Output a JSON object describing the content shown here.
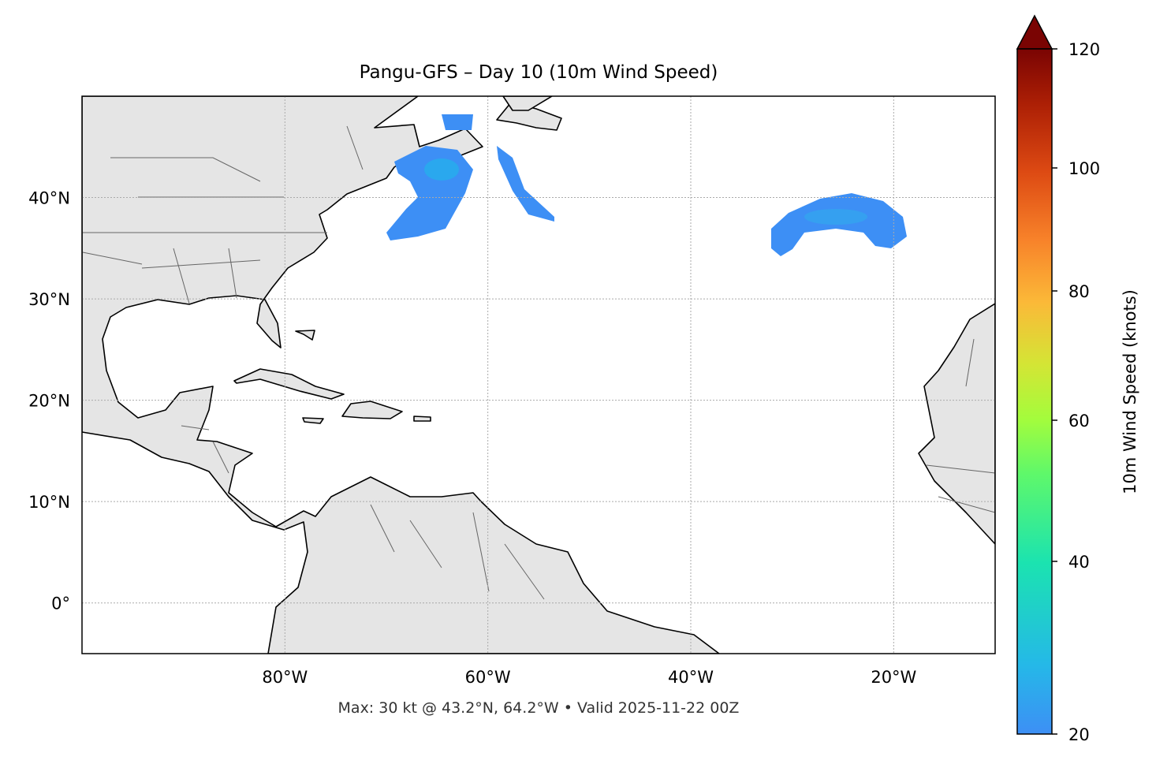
{
  "chart_data": {
    "type": "map",
    "title": "Pangu-GFS – Day 10 (10m Wind Speed)",
    "footer": "Max: 30 kt @ 43.2°N, 64.2°W • Valid 2025-11-22 00Z",
    "extent": {
      "lon": [
        -100,
        -10
      ],
      "lat": [
        -5,
        50
      ]
    },
    "grid": true,
    "x_ticks": [
      {
        "value": -80,
        "label": "80°W"
      },
      {
        "value": -60,
        "label": "60°W"
      },
      {
        "value": -40,
        "label": "40°W"
      },
      {
        "value": -20,
        "label": "20°W"
      }
    ],
    "y_ticks": [
      {
        "value": 40,
        "label": "40°N"
      },
      {
        "value": 30,
        "label": "30°N"
      },
      {
        "value": 20,
        "label": "20°N"
      },
      {
        "value": 10,
        "label": "10°N"
      },
      {
        "value": 0,
        "label": "0°"
      }
    ],
    "colorbar": {
      "label": "10m Wind Speed (knots)",
      "range": [
        20,
        120
      ],
      "extend": "max",
      "ticks": [
        {
          "value": 20,
          "label": "20"
        },
        {
          "value": 40,
          "label": "40"
        },
        {
          "value": 60,
          "label": "60"
        },
        {
          "value": 80,
          "label": "80"
        },
        {
          "value": 100,
          "label": "100"
        },
        {
          "value": 120,
          "label": "120"
        }
      ],
      "colormap": "turbo"
    },
    "wind_max": {
      "value_kt": 30,
      "lat": 43.2,
      "lon": -64.2
    },
    "colors": {
      "land": "#e5e5e5",
      "coast": "#000000",
      "borders": "#666666",
      "wind_low": "#3d8ff5"
    }
  }
}
